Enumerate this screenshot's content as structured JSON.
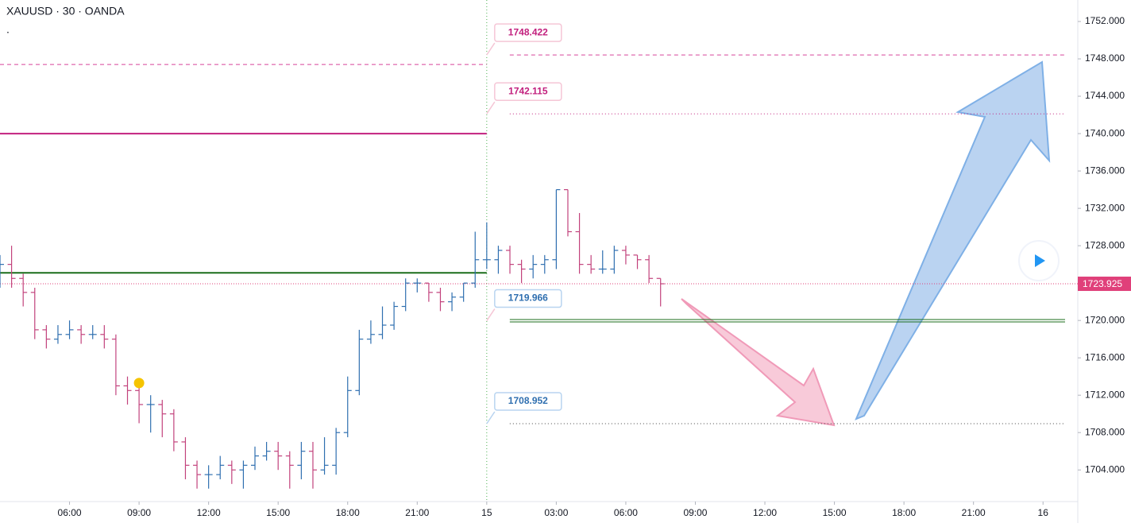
{
  "chart_data": {
    "type": "ohlc",
    "title": "XAUUSD · 30 · OANDA",
    "subtitle": ".",
    "x": [
      3,
      3.5,
      4,
      4.5,
      5,
      5.5,
      6,
      6.5,
      7,
      7.5,
      8,
      8.5,
      9,
      9.5,
      10,
      10.5,
      11,
      11.5,
      12,
      12.5,
      13,
      13.5,
      14,
      14.5,
      15,
      15.5,
      16,
      16.5,
      17,
      17.5,
      18,
      18.5,
      19,
      19.5,
      20,
      20.5,
      21,
      21.5,
      22,
      22.5,
      23,
      23.5,
      24,
      24.5,
      25,
      25.5,
      26,
      26.5,
      27,
      27.5,
      28,
      28.5,
      29,
      29.5,
      30,
      30.5,
      31,
      31.5
    ],
    "open": [
      1724.5,
      1726,
      1724.5,
      1723,
      1719,
      1718,
      1718.5,
      1719,
      1718.5,
      1718.5,
      1718,
      1713,
      1712.5,
      1711,
      1711,
      1710,
      1707,
      1704.5,
      1703.5,
      1703.5,
      1704.5,
      1704,
      1704.5,
      1705.5,
      1706,
      1705.5,
      1704.5,
      1706,
      1704,
      1704.5,
      1708,
      1712.5,
      1718,
      1718.5,
      1719.5,
      1721.5,
      1724,
      1724,
      1723,
      1722,
      1722.5,
      1724,
      1726.5,
      1726.5,
      1727.5,
      1726,
      1725.5,
      1726,
      1726.5,
      1734,
      1729.5,
      1726,
      1725.5,
      1725.5,
      1727.5,
      1727,
      1726.5,
      1724.5
    ],
    "high": [
      1727,
      1728,
      1725,
      1723.5,
      1719.5,
      1719.5,
      1720,
      1719.5,
      1719.5,
      1719.5,
      1718.5,
      1714,
      1713.5,
      1712,
      1711.5,
      1710.5,
      1707.5,
      1705,
      1704.5,
      1705.5,
      1705,
      1705,
      1706.5,
      1707,
      1707,
      1706,
      1707,
      1707,
      1707.5,
      1708.5,
      1714,
      1719,
      1720,
      1721.5,
      1722,
      1724.5,
      1724.5,
      1724,
      1723.5,
      1723,
      1724,
      1729.5,
      1730.5,
      1728,
      1728,
      1726.5,
      1727,
      1727,
      1734,
      1734,
      1731.5,
      1727,
      1727.5,
      1728,
      1728,
      1727,
      1727,
      1724.5
    ],
    "low": [
      1723.5,
      1723.5,
      1721.5,
      1718,
      1717,
      1717.5,
      1718,
      1717.5,
      1718,
      1717,
      1712,
      1711,
      1709,
      1708,
      1707.5,
      1706,
      1703,
      1702,
      1702,
      1703,
      1702.5,
      1702,
      1704,
      1705,
      1704,
      1702,
      1703,
      1702,
      1703.5,
      1703.5,
      1707.5,
      1712,
      1717.5,
      1718,
      1719,
      1721,
      1723,
      1722,
      1721,
      1721,
      1722,
      1723.5,
      1725.5,
      1725,
      1725,
      1724,
      1724.5,
      1725,
      1725.5,
      1729,
      1725,
      1725,
      1725,
      1725,
      1726,
      1725.5,
      1724,
      1721.5
    ],
    "close": [
      1726,
      1724.5,
      1723,
      1719,
      1718,
      1718.5,
      1719,
      1718.5,
      1718.5,
      1718,
      1713,
      1712.5,
      1711,
      1711,
      1710,
      1707,
      1704.5,
      1703.5,
      1703.5,
      1704.5,
      1704,
      1704.5,
      1705.5,
      1706,
      1705.5,
      1704.5,
      1706,
      1704,
      1704.5,
      1708,
      1712.5,
      1718,
      1718.5,
      1719.5,
      1721.5,
      1724,
      1724,
      1723,
      1722,
      1722.5,
      1724,
      1726.5,
      1726.5,
      1727.5,
      1726,
      1725.5,
      1726,
      1726.5,
      1734,
      1729.5,
      1726,
      1725.5,
      1725.5,
      1727.5,
      1727,
      1726.5,
      1724.5,
      1723.925
    ],
    "up_color": "#2f6fb0",
    "down_color": "#c2427c",
    "xlim": [
      3,
      49.5
    ],
    "ylim": [
      1700.7,
      1754.3
    ],
    "xticks": [
      {
        "value": 6,
        "label": "06:00"
      },
      {
        "value": 9,
        "label": "09:00"
      },
      {
        "value": 12,
        "label": "12:00"
      },
      {
        "value": 15,
        "label": "15:00"
      },
      {
        "value": 18,
        "label": "18:00"
      },
      {
        "value": 21,
        "label": "21:00"
      },
      {
        "value": 24,
        "label": "15"
      },
      {
        "value": 27,
        "label": "03:00"
      },
      {
        "value": 30,
        "label": "06:00"
      },
      {
        "value": 33,
        "label": "09:00"
      },
      {
        "value": 36,
        "label": "12:00"
      },
      {
        "value": 39,
        "label": "15:00"
      },
      {
        "value": 42,
        "label": "18:00"
      },
      {
        "value": 45,
        "label": "21:00"
      },
      {
        "value": 48,
        "label": "16"
      }
    ],
    "yticks": [
      {
        "value": 1752,
        "label": "1752.000"
      },
      {
        "value": 1748,
        "label": "1748.000"
      },
      {
        "value": 1744,
        "label": "1744.000"
      },
      {
        "value": 1740,
        "label": "1740.000"
      },
      {
        "value": 1736,
        "label": "1736.000"
      },
      {
        "value": 1732,
        "label": "1732.000"
      },
      {
        "value": 1728,
        "label": "1728.000"
      },
      {
        "value": 1724,
        "label": "1724.000"
      },
      {
        "value": 1720,
        "label": "1720.000"
      },
      {
        "value": 1716,
        "label": "1716.000"
      },
      {
        "value": 1712,
        "label": "1712.000"
      },
      {
        "value": 1708,
        "label": "1708.000"
      },
      {
        "value": 1704,
        "label": "1704.000"
      }
    ],
    "session_break": 24,
    "left_levels": [
      {
        "value": 1747.4,
        "color": "#d6449a",
        "style": "dashed"
      },
      {
        "value": 1740,
        "color": "#c2207e",
        "style": "solid"
      },
      {
        "value": 1725.1,
        "color": "#1b6e1b",
        "style": "solid"
      }
    ],
    "right_levels": [
      {
        "value": 1748.422,
        "color": "#d6449a",
        "style": "dashed",
        "label_color": "#c2207e"
      },
      {
        "value": 1742.115,
        "color": "#c2207e",
        "style": "dotted",
        "label_color": "#c2207e"
      },
      {
        "value": 1719.966,
        "color": "#1b6e1b",
        "style": "double",
        "label_color": "#2f6fb0"
      },
      {
        "value": 1708.952,
        "color": "#444",
        "style": "dotted",
        "label_color": "#2f6fb0"
      }
    ],
    "last_price": 1723.925,
    "last_color": "#e0407a",
    "marker": {
      "x": 9,
      "y": 1713.3,
      "color": "#f5c400"
    }
  }
}
